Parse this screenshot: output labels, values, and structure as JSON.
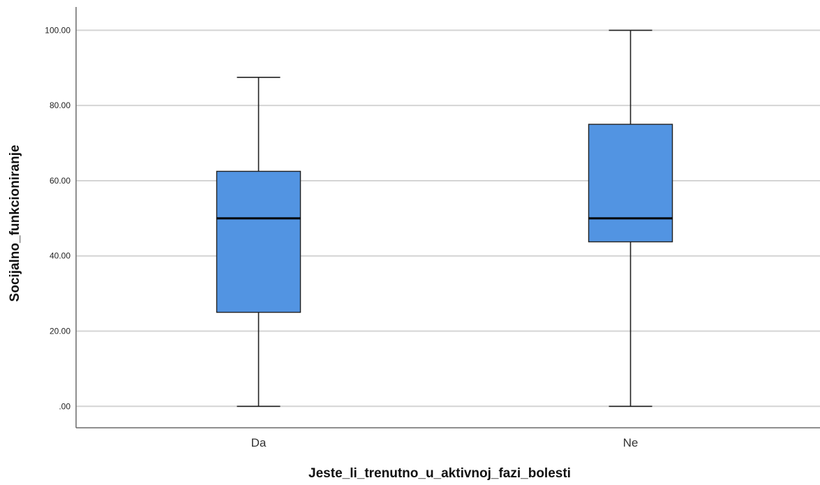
{
  "chart_data": {
    "type": "boxplot",
    "xlabel": "Jeste_li_trenutno_u_aktivnoj_fazi_bolesti",
    "ylabel": "Socijalno_funkcioniranje",
    "ylim": [
      -5.7,
      106.2
    ],
    "y_ticks": [
      0,
      20,
      40,
      60,
      80,
      100
    ],
    "y_tick_labels": [
      ".00",
      "20.00",
      "40.00",
      "60.00",
      "80.00",
      "100.00"
    ],
    "grid": true,
    "categories": [
      "Da",
      "Ne"
    ],
    "series": [
      {
        "category": "Da",
        "min": 0,
        "q1": 25,
        "median": 50,
        "q3": 62.5,
        "max": 87.5
      },
      {
        "category": "Ne",
        "min": 0,
        "q1": 43.75,
        "median": 50,
        "q3": 75,
        "max": 100
      }
    ],
    "box_color": "#5294e2",
    "outline_color": "#222222"
  }
}
